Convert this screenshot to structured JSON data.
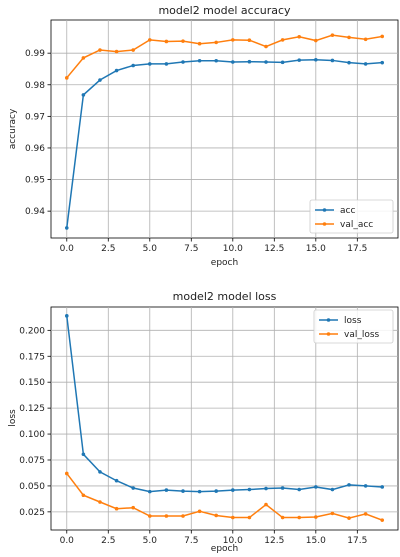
{
  "chart_data": [
    {
      "type": "line",
      "title": "model2 model accuracy",
      "xlabel": "epoch",
      "ylabel": "accuracy",
      "x": [
        0,
        1,
        2,
        3,
        4,
        5,
        6,
        7,
        8,
        9,
        10,
        11,
        12,
        13,
        14,
        15,
        16,
        17,
        18,
        19
      ],
      "xlim": [
        -0.95,
        19.95
      ],
      "ylim": [
        0.9315,
        1.0005
      ],
      "xticks": [
        0,
        2.5,
        5,
        7.5,
        10,
        12.5,
        15,
        17.5
      ],
      "xtick_labels": [
        "0.0",
        "2.5",
        "5.0",
        "7.5",
        "10.0",
        "12.5",
        "15.0",
        "17.5"
      ],
      "yticks": [
        0.94,
        0.95,
        0.96,
        0.97,
        0.98,
        0.99
      ],
      "ytick_labels": [
        "0.94",
        "0.95",
        "0.96",
        "0.97",
        "0.98",
        "0.99"
      ],
      "grid": true,
      "legend": "lower-right",
      "series": [
        {
          "name": "acc",
          "color": "#1f77b4",
          "values": [
            0.9347,
            0.9768,
            0.9815,
            0.9845,
            0.9861,
            0.9866,
            0.9866,
            0.9872,
            0.9876,
            0.9876,
            0.9872,
            0.9873,
            0.9872,
            0.9871,
            0.9878,
            0.9879,
            0.9877,
            0.987,
            0.9866,
            0.987
          ]
        },
        {
          "name": "val_acc",
          "color": "#ff7f0e",
          "values": [
            0.9822,
            0.9885,
            0.991,
            0.9905,
            0.991,
            0.9942,
            0.9937,
            0.9938,
            0.993,
            0.9934,
            0.9942,
            0.9941,
            0.9921,
            0.9942,
            0.9952,
            0.994,
            0.9957,
            0.995,
            0.9944,
            0.9953
          ]
        }
      ]
    },
    {
      "type": "line",
      "title": "model2 model loss",
      "xlabel": "epoch",
      "ylabel": "loss",
      "x": [
        0,
        1,
        2,
        3,
        4,
        5,
        6,
        7,
        8,
        9,
        10,
        11,
        12,
        13,
        14,
        15,
        16,
        17,
        18,
        19
      ],
      "xlim": [
        -0.95,
        19.95
      ],
      "ylim": [
        0.0075,
        0.2225
      ],
      "xticks": [
        0,
        2.5,
        5,
        7.5,
        10,
        12.5,
        15,
        17.5
      ],
      "xtick_labels": [
        "0.0",
        "2.5",
        "5.0",
        "7.5",
        "10.0",
        "12.5",
        "15.0",
        "17.5"
      ],
      "yticks": [
        0.025,
        0.05,
        0.075,
        0.1,
        0.125,
        0.15,
        0.175,
        0.2
      ],
      "ytick_labels": [
        "0.025",
        "0.050",
        "0.075",
        "0.100",
        "0.125",
        "0.150",
        "0.175",
        "0.200"
      ],
      "grid": true,
      "legend": "upper-right",
      "series": [
        {
          "name": "loss",
          "color": "#1f77b4",
          "values": [
            0.214,
            0.0805,
            0.0635,
            0.055,
            0.048,
            0.0445,
            0.046,
            0.045,
            0.0445,
            0.045,
            0.046,
            0.0465,
            0.0475,
            0.048,
            0.0465,
            0.049,
            0.0465,
            0.051,
            0.05,
            0.049
          ]
        },
        {
          "name": "val_loss",
          "color": "#ff7f0e",
          "values": [
            0.062,
            0.041,
            0.0345,
            0.028,
            0.029,
            0.021,
            0.021,
            0.021,
            0.0255,
            0.0215,
            0.0195,
            0.0195,
            0.032,
            0.0195,
            0.0195,
            0.02,
            0.0235,
            0.019,
            0.023,
            0.017
          ]
        }
      ]
    }
  ]
}
